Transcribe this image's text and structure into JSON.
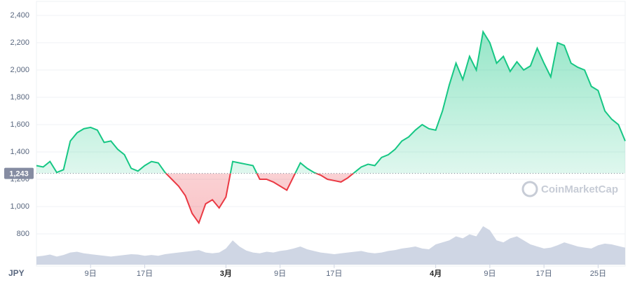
{
  "chart_data": {
    "type": "line",
    "x_axis_label": "JPY",
    "watermark": "CoinMarketCap",
    "categories": [
      null,
      null,
      null,
      null,
      null,
      null,
      null,
      null,
      "9日",
      null,
      null,
      null,
      null,
      null,
      null,
      null,
      "17日",
      null,
      null,
      null,
      null,
      null,
      null,
      null,
      null,
      null,
      null,
      null,
      "3月",
      null,
      null,
      null,
      null,
      null,
      null,
      null,
      "9日",
      null,
      null,
      null,
      null,
      null,
      null,
      null,
      "17日",
      null,
      null,
      null,
      null,
      null,
      null,
      null,
      null,
      null,
      null,
      null,
      null,
      null,
      null,
      "4月",
      null,
      null,
      null,
      null,
      null,
      null,
      null,
      "9日",
      null,
      null,
      null,
      null,
      null,
      null,
      null,
      "17日",
      null,
      null,
      null,
      null,
      null,
      null,
      null,
      "25日",
      null,
      null,
      null,
      null
    ],
    "series": [
      {
        "color": "#16c784",
        "below_color": "#ea3943",
        "values": [
          1300,
          1290,
          1330,
          1250,
          1270,
          1480,
          1540,
          1570,
          1580,
          1560,
          1470,
          1480,
          1420,
          1380,
          1280,
          1260,
          1300,
          1330,
          1320,
          1250,
          1200,
          1150,
          1080,
          950,
          880,
          1020,
          1050,
          990,
          1070,
          1330,
          1320,
          1310,
          1300,
          1200,
          1200,
          1180,
          1150,
          1120,
          1220,
          1320,
          1280,
          1250,
          1230,
          1200,
          1190,
          1180,
          1210,
          1250,
          1290,
          1310,
          1300,
          1360,
          1380,
          1420,
          1480,
          1510,
          1560,
          1600,
          1570,
          1560,
          1700,
          1890,
          2050,
          1930,
          2100,
          2000,
          2280,
          2200,
          2050,
          2100,
          1990,
          2060,
          2000,
          2030,
          2160,
          2050,
          1950,
          2200,
          2180,
          2050,
          2020,
          2000,
          1880,
          1850,
          1700,
          1640,
          1600,
          1480
        ]
      }
    ],
    "volume": {
      "color": "#cfd6e4",
      "values": [
        20,
        22,
        25,
        20,
        24,
        30,
        32,
        28,
        26,
        24,
        22,
        20,
        22,
        24,
        26,
        25,
        22,
        24,
        22,
        26,
        28,
        30,
        32,
        34,
        36,
        30,
        28,
        30,
        40,
        60,
        45,
        35,
        30,
        28,
        32,
        30,
        34,
        36,
        40,
        45,
        38,
        34,
        30,
        28,
        26,
        28,
        30,
        32,
        34,
        30,
        28,
        30,
        34,
        36,
        40,
        42,
        45,
        40,
        38,
        50,
        55,
        60,
        70,
        65,
        75,
        70,
        95,
        85,
        60,
        55,
        65,
        70,
        60,
        50,
        45,
        40,
        42,
        48,
        55,
        50,
        45,
        42,
        40,
        48,
        52,
        50,
        46,
        42
      ]
    },
    "baseline": 1243,
    "baseline_label": "1,243",
    "ylim": [
      600,
      2400
    ],
    "yticks": [
      800,
      {
        "value": 1000,
        "label": "1,000"
      },
      {
        "value": 1200,
        "label": "1,200"
      },
      {
        "value": 1400,
        "label": "1,400"
      },
      {
        "value": 1600,
        "label": "1,600"
      },
      {
        "value": 1800,
        "label": "1,800"
      },
      {
        "value": 2000,
        "label": "2,000"
      },
      {
        "value": 2200,
        "label": "2,200"
      },
      {
        "value": 2400,
        "label": "2,400"
      }
    ],
    "grid": true
  }
}
